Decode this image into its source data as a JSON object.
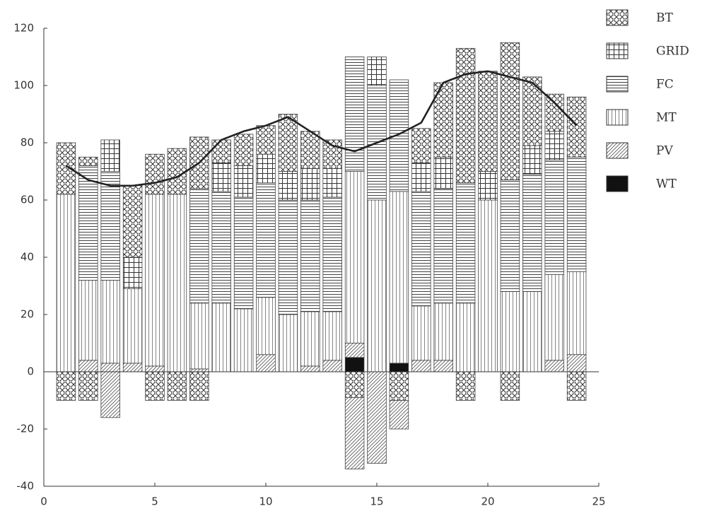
{
  "chart_data": {
    "type": "stacked-bar",
    "x": [
      1,
      2,
      3,
      4,
      5,
      6,
      7,
      8,
      9,
      10,
      11,
      12,
      13,
      14,
      15,
      16,
      17,
      18,
      19,
      20,
      21,
      22,
      23,
      24
    ],
    "xlim": [
      0,
      25
    ],
    "xticks": [
      0,
      5,
      10,
      15,
      20,
      25
    ],
    "ylim": [
      -40,
      120
    ],
    "yticks": [
      -40,
      -20,
      0,
      20,
      40,
      60,
      80,
      100,
      120
    ],
    "series": [
      {
        "name": "BT",
        "color": "#000000",
        "pattern": "crosshatch",
        "values": [
          18,
          3,
          0,
          25,
          14,
          16,
          18,
          8,
          11,
          10,
          20,
          13,
          10,
          0,
          0,
          0,
          12,
          26,
          47,
          35,
          48,
          24,
          13,
          21
        ],
        "negative_values": [
          -10,
          -10,
          0,
          0,
          -10,
          -10,
          -10,
          0,
          0,
          0,
          0,
          0,
          0,
          -9,
          0,
          -10,
          0,
          0,
          -10,
          0,
          -10,
          0,
          0,
          -10
        ]
      },
      {
        "name": "GRID",
        "color": "#000000",
        "pattern": "grid",
        "values": [
          0,
          0,
          11,
          11,
          0,
          0,
          0,
          10,
          11,
          10,
          10,
          11,
          10,
          0,
          10,
          0,
          10,
          11,
          0,
          10,
          0,
          10,
          10,
          0
        ]
      },
      {
        "name": "FC",
        "color": "#000000",
        "pattern": "hlines",
        "values": [
          0,
          40,
          38,
          0,
          0,
          0,
          40,
          39,
          39,
          40,
          40,
          39,
          40,
          40,
          40,
          39,
          40,
          40,
          42,
          0,
          39,
          41,
          40,
          40
        ]
      },
      {
        "name": "MT",
        "color": "#000000",
        "pattern": "vlines",
        "values": [
          62,
          28,
          29,
          26,
          60,
          62,
          23,
          24,
          22,
          20,
          20,
          19,
          17,
          60,
          60,
          60,
          19,
          20,
          24,
          60,
          28,
          28,
          30,
          29
        ]
      },
      {
        "name": "PV",
        "color": "#000000",
        "pattern": "diagonal",
        "values": [
          0,
          4,
          3,
          3,
          2,
          0,
          1,
          0,
          0,
          6,
          0,
          2,
          4,
          5,
          0,
          0,
          4,
          4,
          0,
          0,
          0,
          0,
          4,
          6
        ],
        "negative_values": [
          0,
          0,
          -16,
          0,
          0,
          0,
          0,
          0,
          0,
          0,
          0,
          0,
          0,
          -25,
          -32,
          -10,
          0,
          0,
          0,
          0,
          0,
          0,
          0,
          0
        ]
      },
      {
        "name": "WT",
        "color": "#000000",
        "pattern": "solid",
        "values": [
          0,
          0,
          0,
          0,
          0,
          0,
          0,
          0,
          0,
          0,
          0,
          0,
          0,
          5,
          0,
          3,
          0,
          0,
          0,
          0,
          0,
          0,
          0,
          0
        ]
      }
    ],
    "line": {
      "color": "#222222",
      "values": [
        72,
        67,
        65,
        65,
        66,
        68,
        73,
        81,
        84,
        86,
        89,
        84,
        79,
        77,
        80,
        83,
        87,
        101,
        104,
        105,
        103,
        101,
        94,
        86
      ]
    }
  }
}
